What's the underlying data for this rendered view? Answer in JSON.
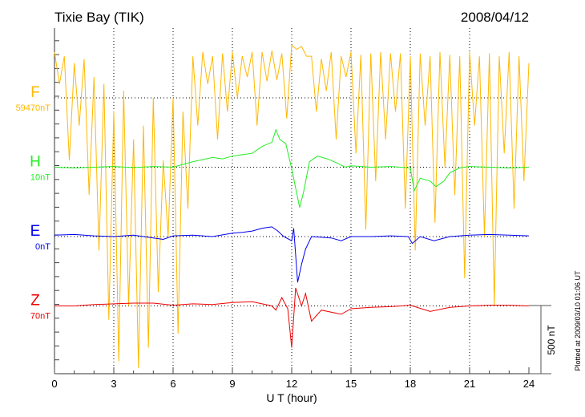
{
  "chart_data": {
    "type": "line",
    "title": "Tixie Bay (TIK)",
    "date": "2008/04/12",
    "xlabel": "U T (hour)",
    "xlim": [
      0,
      24
    ],
    "x_ticks": [
      "0",
      "3",
      "6",
      "9",
      "12",
      "15",
      "18",
      "21",
      "24"
    ],
    "scale_label": "500 nT",
    "scale_nT": 500,
    "footer": "Plotted at 2009/03/10 01:06 UT",
    "grid": true,
    "series": [
      {
        "name": "F",
        "baseline_label": "59470nT",
        "color": "#ffb800",
        "offset_index": 0,
        "x_step": 0.25,
        "values": [
          330,
          100,
          300,
          -450,
          250,
          -200,
          280,
          -700,
          150,
          -1100,
          100,
          -1600,
          -100,
          -1900,
          50,
          -1500,
          -300,
          -1950,
          -200,
          -1800,
          0,
          -1400,
          -450,
          -1000,
          0,
          -1700,
          -100,
          -800,
          300,
          -200,
          330,
          100,
          300,
          -300,
          320,
          -100,
          330,
          0,
          300,
          150,
          330,
          -200,
          330,
          120,
          340,
          130,
          320,
          -150,
          380,
          350,
          370,
          300,
          300,
          -100,
          280,
          50,
          330,
          -300,
          300,
          150,
          330,
          -400,
          310,
          -950,
          320,
          -600,
          330,
          -300,
          320,
          -100,
          320,
          -800,
          300,
          -1100,
          320,
          -200,
          300,
          -900,
          330,
          -500,
          310,
          -700,
          300,
          -1300,
          330,
          -200,
          300,
          -1000,
          320,
          -1500,
          300,
          -400,
          330,
          -800,
          300,
          -600,
          250
        ]
      },
      {
        "name": "H",
        "baseline_label": "10nT",
        "color": "#22ee22",
        "offset_index": 1,
        "points": [
          [
            0,
            0
          ],
          [
            1,
            -5
          ],
          [
            2,
            0
          ],
          [
            3,
            5
          ],
          [
            4,
            -3
          ],
          [
            5,
            5
          ],
          [
            6,
            0
          ],
          [
            6.5,
            20
          ],
          [
            7,
            40
          ],
          [
            7.5,
            55
          ],
          [
            8,
            70
          ],
          [
            8.5,
            60
          ],
          [
            9,
            80
          ],
          [
            9.5,
            90
          ],
          [
            10,
            100
          ],
          [
            10.5,
            150
          ],
          [
            11,
            180
          ],
          [
            11.2,
            270
          ],
          [
            11.4,
            200
          ],
          [
            11.7,
            170
          ],
          [
            12,
            -10
          ],
          [
            12.2,
            -150
          ],
          [
            12.4,
            -290
          ],
          [
            12.6,
            -180
          ],
          [
            12.9,
            40
          ],
          [
            13.3,
            80
          ],
          [
            13.8,
            60
          ],
          [
            14.3,
            30
          ],
          [
            14.7,
            0
          ],
          [
            15,
            10
          ],
          [
            16,
            0
          ],
          [
            17,
            5
          ],
          [
            18,
            -5
          ],
          [
            18.2,
            -170
          ],
          [
            18.5,
            -80
          ],
          [
            19,
            -100
          ],
          [
            19.3,
            -140
          ],
          [
            19.7,
            -100
          ],
          [
            20,
            -40
          ],
          [
            20.5,
            -5
          ],
          [
            21,
            5
          ],
          [
            22,
            0
          ],
          [
            23,
            -5
          ],
          [
            24,
            0
          ]
        ]
      },
      {
        "name": "E",
        "baseline_label": "0nT",
        "color": "#0000ee",
        "offset_index": 2,
        "points": [
          [
            0,
            10
          ],
          [
            1,
            15
          ],
          [
            2,
            5
          ],
          [
            3,
            0
          ],
          [
            4,
            10
          ],
          [
            5,
            -10
          ],
          [
            5.5,
            -20
          ],
          [
            6,
            5
          ],
          [
            7,
            10
          ],
          [
            8,
            0
          ],
          [
            9,
            25
          ],
          [
            9.5,
            30
          ],
          [
            10,
            40
          ],
          [
            10.5,
            60
          ],
          [
            11,
            70
          ],
          [
            11.3,
            40
          ],
          [
            11.6,
            0
          ],
          [
            12,
            -30
          ],
          [
            12.1,
            60
          ],
          [
            12.3,
            -330
          ],
          [
            12.5,
            -200
          ],
          [
            12.7,
            -90
          ],
          [
            13,
            0
          ],
          [
            14,
            -10
          ],
          [
            14.5,
            -30
          ],
          [
            15,
            0
          ],
          [
            16,
            0
          ],
          [
            17,
            5
          ],
          [
            17.9,
            0
          ],
          [
            18.1,
            -50
          ],
          [
            18.5,
            0
          ],
          [
            19.2,
            -30
          ],
          [
            20,
            0
          ],
          [
            21,
            10
          ],
          [
            22,
            15
          ],
          [
            23,
            10
          ],
          [
            24,
            5
          ]
        ]
      },
      {
        "name": "Z",
        "baseline_label": "70nT",
        "color": "#ee0000",
        "offset_index": 3,
        "points": [
          [
            0,
            0
          ],
          [
            1,
            0
          ],
          [
            2,
            10
          ],
          [
            3,
            15
          ],
          [
            4,
            20
          ],
          [
            5,
            20
          ],
          [
            6,
            5
          ],
          [
            7,
            15
          ],
          [
            8,
            10
          ],
          [
            9,
            25
          ],
          [
            10,
            30
          ],
          [
            11,
            0
          ],
          [
            11.2,
            -30
          ],
          [
            11.5,
            60
          ],
          [
            11.8,
            -20
          ],
          [
            12,
            -300
          ],
          [
            12.2,
            130
          ],
          [
            12.5,
            0
          ],
          [
            12.7,
            90
          ],
          [
            13,
            -110
          ],
          [
            13.5,
            -30
          ],
          [
            14.5,
            -60
          ],
          [
            15,
            -20
          ],
          [
            16,
            -10
          ],
          [
            17,
            -5
          ],
          [
            18,
            5
          ],
          [
            19,
            -40
          ],
          [
            20,
            -10
          ],
          [
            21,
            0
          ],
          [
            22,
            5
          ],
          [
            23,
            5
          ],
          [
            24,
            0
          ]
        ]
      }
    ]
  }
}
